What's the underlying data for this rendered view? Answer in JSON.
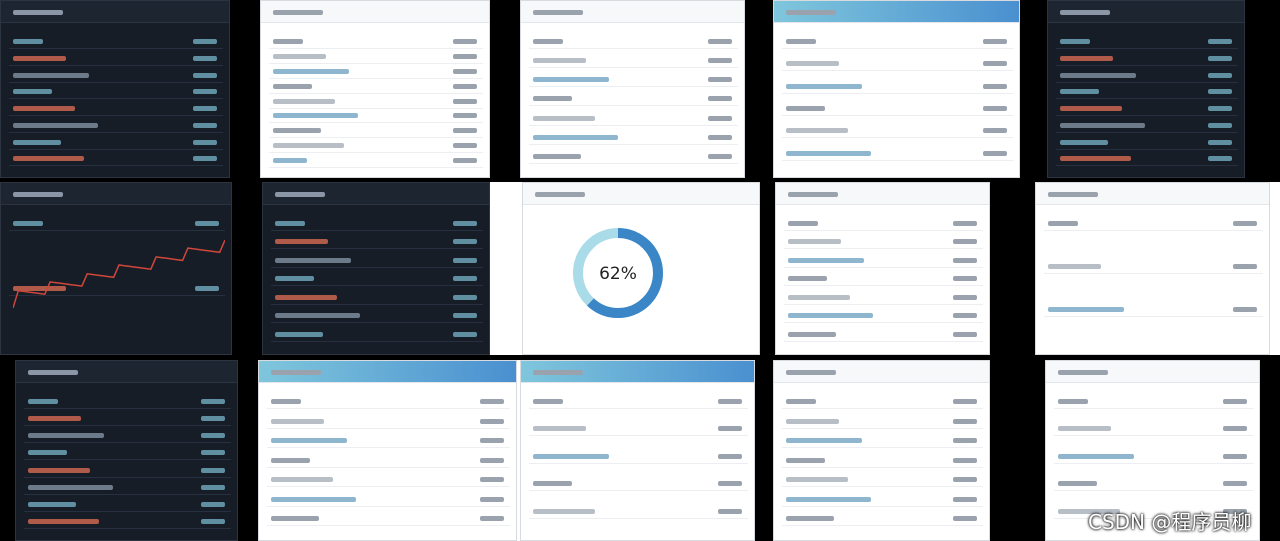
{
  "gauge": {
    "value": 62,
    "label": "62%"
  },
  "watermark": "CSDN @程序员柳"
}
